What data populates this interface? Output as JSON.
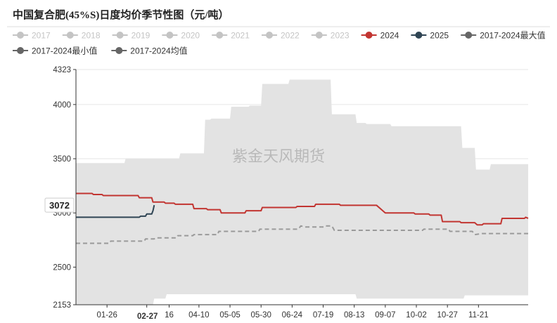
{
  "chart_data": {
    "type": "area",
    "title": "中国复合肥(45%S)日度均价季节性图（元/吨）",
    "watermark": "紫金天风期货",
    "y_range": [
      2153,
      4323
    ],
    "y_ticks": [
      4323,
      4000,
      3500,
      3000,
      2500,
      2153
    ],
    "y_highlight": {
      "value": 3072,
      "label": "3072"
    },
    "x_range_days": [
      1,
      365
    ],
    "x_ticks": [
      {
        "label": "01-26",
        "day": 26
      },
      {
        "label": "02-27",
        "day": 58,
        "highlight": true
      },
      {
        "label": "16",
        "day": 76
      },
      {
        "label": "04-10",
        "day": 100
      },
      {
        "label": "05-05",
        "day": 125
      },
      {
        "label": "05-30",
        "day": 150
      },
      {
        "label": "06-24",
        "day": 175
      },
      {
        "label": "07-19",
        "day": 200
      },
      {
        "label": "08-13",
        "day": 225
      },
      {
        "label": "09-07",
        "day": 250
      },
      {
        "label": "10-02",
        "day": 275
      },
      {
        "label": "10-27",
        "day": 300
      },
      {
        "label": "11-21",
        "day": 325
      }
    ],
    "legend": [
      {
        "name": "2017",
        "color": "#c4c4c4",
        "inactive": true,
        "marker": "dot"
      },
      {
        "name": "2018",
        "color": "#c4c4c4",
        "inactive": true,
        "marker": "dot"
      },
      {
        "name": "2019",
        "color": "#c4c4c4",
        "inactive": true,
        "marker": "dot"
      },
      {
        "name": "2020",
        "color": "#c4c4c4",
        "inactive": true,
        "marker": "dot"
      },
      {
        "name": "2021",
        "color": "#c4c4c4",
        "inactive": true,
        "marker": "dot"
      },
      {
        "name": "2022",
        "color": "#c4c4c4",
        "inactive": true,
        "marker": "dot"
      },
      {
        "name": "2023",
        "color": "#c4c4c4",
        "inactive": true,
        "marker": "dot"
      },
      {
        "name": "2024",
        "color": "#c23531",
        "inactive": false,
        "marker": "dot"
      },
      {
        "name": "2025",
        "color": "#2f4554",
        "inactive": false,
        "marker": "dot"
      },
      {
        "name": "2017-2024最大值",
        "color": "#666666",
        "inactive": false,
        "marker": "dot"
      },
      {
        "name": "2017-2024最小值",
        "color": "#666666",
        "inactive": false,
        "marker": "dot"
      },
      {
        "name": "2017-2024均值",
        "color": "#666666",
        "inactive": false,
        "marker": "dot"
      }
    ],
    "band_max": [
      [
        1,
        3460
      ],
      [
        40,
        3460
      ],
      [
        41,
        3500
      ],
      [
        84,
        3500
      ],
      [
        85,
        3550
      ],
      [
        104,
        3550
      ],
      [
        105,
        3860
      ],
      [
        109,
        3860
      ],
      [
        110,
        3870
      ],
      [
        125,
        3870
      ],
      [
        126,
        3980
      ],
      [
        140,
        3980
      ],
      [
        141,
        3990
      ],
      [
        150,
        3990
      ],
      [
        151,
        4190
      ],
      [
        172,
        4190
      ],
      [
        173,
        4230
      ],
      [
        206,
        4230
      ],
      [
        207,
        3910
      ],
      [
        226,
        3910
      ],
      [
        227,
        3830
      ],
      [
        234,
        3830
      ],
      [
        235,
        3820
      ],
      [
        254,
        3820
      ],
      [
        255,
        3800
      ],
      [
        311,
        3800
      ],
      [
        312,
        3600
      ],
      [
        322,
        3600
      ],
      [
        323,
        3400
      ],
      [
        334,
        3400
      ],
      [
        335,
        3450
      ],
      [
        365,
        3450
      ]
    ],
    "band_min": [
      [
        1,
        2153
      ],
      [
        63,
        2153
      ],
      [
        64,
        2210
      ],
      [
        73,
        2210
      ],
      [
        74,
        2250
      ],
      [
        226,
        2250
      ],
      [
        227,
        2210
      ],
      [
        313,
        2210
      ],
      [
        314,
        2240
      ],
      [
        365,
        2240
      ]
    ],
    "series": [
      {
        "name": "2024",
        "color": "#c23531",
        "style": "solid",
        "points": [
          [
            1,
            3180
          ],
          [
            14,
            3180
          ],
          [
            15,
            3170
          ],
          [
            22,
            3170
          ],
          [
            23,
            3160
          ],
          [
            51,
            3160
          ],
          [
            52,
            3140
          ],
          [
            62,
            3140
          ],
          [
            63,
            3100
          ],
          [
            72,
            3100
          ],
          [
            73,
            3090
          ],
          [
            80,
            3090
          ],
          [
            81,
            3080
          ],
          [
            95,
            3080
          ],
          [
            96,
            3040
          ],
          [
            106,
            3040
          ],
          [
            107,
            3030
          ],
          [
            117,
            3030
          ],
          [
            118,
            3000
          ],
          [
            137,
            3000
          ],
          [
            138,
            3020
          ],
          [
            150,
            3020
          ],
          [
            151,
            3050
          ],
          [
            178,
            3050
          ],
          [
            179,
            3060
          ],
          [
            193,
            3060
          ],
          [
            194,
            3080
          ],
          [
            213,
            3080
          ],
          [
            214,
            3070
          ],
          [
            243,
            3070
          ],
          [
            247,
            3030
          ],
          [
            250,
            3000
          ],
          [
            273,
            3000
          ],
          [
            274,
            2990
          ],
          [
            285,
            2990
          ],
          [
            286,
            2980
          ],
          [
            295,
            2980
          ],
          [
            296,
            2920
          ],
          [
            310,
            2920
          ],
          [
            311,
            2910
          ],
          [
            322,
            2910
          ],
          [
            324,
            2890
          ],
          [
            328,
            2890
          ],
          [
            329,
            2900
          ],
          [
            343,
            2900
          ],
          [
            344,
            2950
          ],
          [
            362,
            2950
          ],
          [
            363,
            2960
          ],
          [
            365,
            2950
          ]
        ]
      },
      {
        "name": "2025",
        "color": "#2f4554",
        "style": "solid",
        "points": [
          [
            1,
            2960
          ],
          [
            52,
            2960
          ],
          [
            53,
            2970
          ],
          [
            57,
            2970
          ],
          [
            58,
            2990
          ],
          [
            62,
            2990
          ],
          [
            63,
            3020
          ],
          [
            64,
            3072
          ]
        ]
      },
      {
        "name": "2017-2024均值",
        "color": "#9a9a9a",
        "style": "dashed",
        "points": [
          [
            1,
            2720
          ],
          [
            28,
            2720
          ],
          [
            29,
            2740
          ],
          [
            56,
            2740
          ],
          [
            57,
            2760
          ],
          [
            64,
            2760
          ],
          [
            65,
            2770
          ],
          [
            82,
            2770
          ],
          [
            83,
            2790
          ],
          [
            95,
            2790
          ],
          [
            96,
            2800
          ],
          [
            115,
            2800
          ],
          [
            116,
            2830
          ],
          [
            148,
            2830
          ],
          [
            149,
            2850
          ],
          [
            180,
            2850
          ],
          [
            182,
            2880
          ],
          [
            186,
            2870
          ],
          [
            201,
            2870
          ],
          [
            202,
            2880
          ],
          [
            207,
            2880
          ],
          [
            209,
            2840
          ],
          [
            280,
            2840
          ],
          [
            281,
            2850
          ],
          [
            301,
            2850
          ],
          [
            302,
            2830
          ],
          [
            320,
            2830
          ],
          [
            322,
            2800
          ],
          [
            328,
            2810
          ],
          [
            365,
            2810
          ]
        ]
      }
    ]
  }
}
